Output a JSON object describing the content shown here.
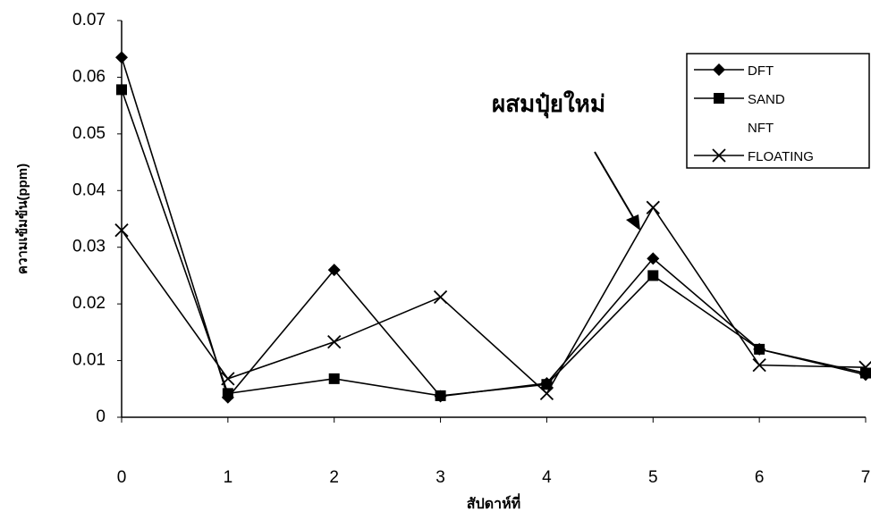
{
  "chart_data": {
    "type": "line",
    "y_label": "ความเข้มข้น(ppm)",
    "x_label": "สัปดาห์ที่",
    "annotation": "ผสมปุ๋ยใหม่",
    "x": [
      0,
      1,
      2,
      3,
      4,
      5,
      6,
      7
    ],
    "xlim": [
      0,
      7
    ],
    "xticks": [
      0,
      1,
      2,
      3,
      4,
      5,
      6,
      7
    ],
    "ylim": [
      0,
      0.07
    ],
    "yticks": [
      0,
      0.01,
      0.02,
      0.03,
      0.04,
      0.05,
      0.06,
      0.07
    ],
    "legend": "upper right",
    "series": [
      {
        "name": "DFT",
        "color": "#000000",
        "marker": "diamond",
        "values": [
          0.0635,
          0.0035,
          0.026,
          0.0037,
          0.006,
          0.028,
          0.012,
          0.0075
        ]
      },
      {
        "name": "SAND",
        "color": "#000000",
        "marker": "square",
        "values": [
          0.0578,
          0.0042,
          0.0068,
          0.0038,
          0.0058,
          0.025,
          0.012,
          0.0078
        ]
      },
      {
        "name": "NFT",
        "color": "#000000",
        "marker": "none",
        "values": [
          null,
          null,
          null,
          null,
          null,
          null,
          null,
          null
        ]
      },
      {
        "name": "FLOATING",
        "color": "#000000",
        "marker": "x",
        "values": [
          0.033,
          0.0068,
          0.0133,
          0.0212,
          0.0042,
          0.037,
          0.0092,
          0.0088
        ]
      }
    ]
  }
}
